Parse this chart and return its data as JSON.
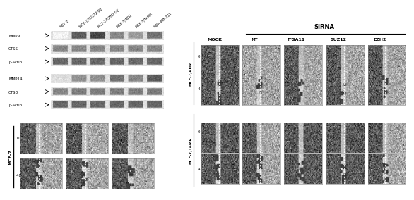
{
  "wb_labels_left": [
    "MMP9",
    "CTSS",
    "β-Actin",
    "MMP14",
    "CTSB",
    "β-Actin"
  ],
  "wb_col_labels": [
    "MCF-7",
    "MCF-7/SUZ12 OE",
    "MCF-7/EZH2 OE",
    "MCF-7/ADR",
    "MCF-7/TAMR",
    "MDA-MB-231"
  ],
  "scratch_left_col_labels": [
    "MOCK",
    "SUZ12 OE",
    "EZH2 OE"
  ],
  "scratch_left_cell_label": "MCF-7",
  "sirna_label": "SiRNA",
  "sirna_col_labels": [
    "MOCK",
    "NT",
    "ITGA11",
    "SUZ12",
    "EZH2"
  ],
  "cell_label_adr": "MCF-7/ADR",
  "cell_label_tamr": "MCF-7/TAMR",
  "band_intensities": [
    [
      0.05,
      0.75,
      0.85,
      0.55,
      0.45,
      0.65
    ],
    [
      0.55,
      0.55,
      0.55,
      0.55,
      0.55,
      0.55
    ],
    [
      0.7,
      0.7,
      0.7,
      0.7,
      0.7,
      0.7
    ],
    [
      0.15,
      0.5,
      0.5,
      0.65,
      0.55,
      0.75
    ],
    [
      0.55,
      0.6,
      0.6,
      0.6,
      0.6,
      0.6
    ],
    [
      0.7,
      0.7,
      0.7,
      0.7,
      0.7,
      0.7
    ]
  ]
}
